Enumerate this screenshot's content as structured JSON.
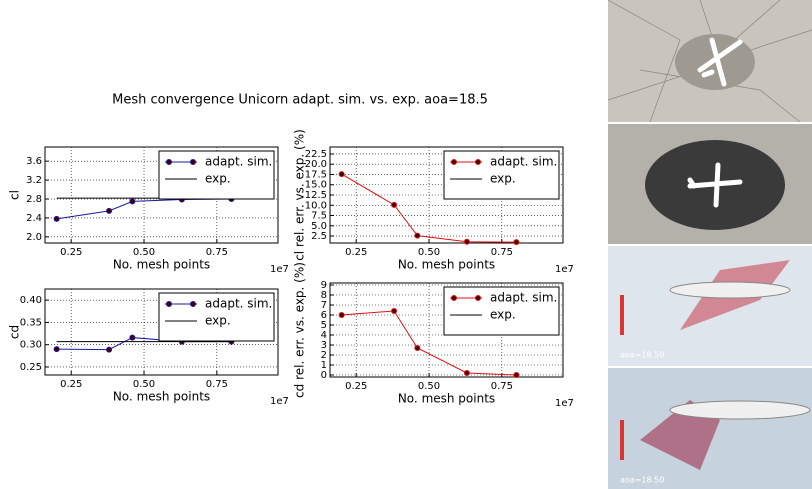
{
  "title": "Mesh convergence Unicorn adapt. sim. vs. exp. aoa=18.5",
  "image_labels": [
    "aoa=18.50",
    "aoa=18.50"
  ],
  "chart_data": [
    {
      "type": "line",
      "x": [
        0.2,
        0.38,
        0.46,
        0.63,
        0.8
      ],
      "xlim": [
        0.16,
        0.96
      ],
      "xticks": [
        0.25,
        {
          "value": 0.5,
          "label": "0.50"
        },
        0.75
      ],
      "x_offset_label": "1e7",
      "xlabel": "No. mesh points",
      "ylabel": "cl",
      "ylim": [
        1.87,
        3.9
      ],
      "yticks": [
        {
          "value": 2.0,
          "label": "2.0"
        },
        2.4,
        2.8,
        3.2,
        3.6
      ],
      "grid": true,
      "legend": "upper right",
      "series": [
        {
          "name": "adapt. sim.",
          "color": "#1a1aa0",
          "markers": true,
          "values": [
            2.38,
            2.55,
            2.75,
            2.79,
            2.8
          ]
        },
        {
          "name": "exp.",
          "color": "#000000",
          "markers": false,
          "values": [
            2.82,
            2.82,
            2.82,
            2.82,
            2.82
          ]
        }
      ]
    },
    {
      "type": "line",
      "x": [
        0.2,
        0.38,
        0.46,
        0.63,
        0.8
      ],
      "xlim": [
        0.16,
        0.96
      ],
      "xticks": [
        0.25,
        {
          "value": 0.5,
          "label": "0.50"
        },
        0.75
      ],
      "x_offset_label": "1e7",
      "xlabel": "No. mesh points",
      "ylabel": "cd",
      "ylim": [
        0.232,
        0.425
      ],
      "yticks": [
        0.25,
        {
          "value": 0.3,
          "label": "0.30"
        },
        0.35,
        {
          "value": 0.4,
          "label": "0.40"
        }
      ],
      "grid": true,
      "legend": "upper right",
      "series": [
        {
          "name": "adapt. sim.",
          "color": "#1a1aa0",
          "markers": true,
          "values": [
            0.29,
            0.289,
            0.316,
            0.307,
            0.307
          ]
        },
        {
          "name": "exp.",
          "color": "#000000",
          "markers": false,
          "values": [
            0.307,
            0.307,
            0.307,
            0.307,
            0.307
          ]
        }
      ]
    },
    {
      "type": "line",
      "x": [
        0.2,
        0.38,
        0.46,
        0.63,
        0.8
      ],
      "xlim": [
        0.16,
        0.96
      ],
      "xticks": [
        0.25,
        {
          "value": 0.5,
          "label": "0.50"
        },
        0.75
      ],
      "x_offset_label": "1e7",
      "xlabel": "No. mesh points",
      "ylabel": "cl rel. err. vs. exp. (%)",
      "ylim": [
        0.8,
        24.2
      ],
      "yticks": [
        2.5,
        {
          "value": 5,
          "label": "5.0"
        },
        7.5,
        {
          "value": 10,
          "label": "10.0"
        },
        12.5,
        {
          "value": 15,
          "label": "15.0"
        },
        17.5,
        {
          "value": 20,
          "label": "20.0"
        },
        22.5
      ],
      "grid": true,
      "legend": "upper right",
      "series": [
        {
          "name": "adapt. sim.",
          "color": "#e01010",
          "markers": true,
          "values": [
            17.6,
            10.1,
            2.6,
            1.1,
            1.0
          ]
        },
        {
          "name": "exp.",
          "color": "#000000",
          "markers": false,
          "values": [
            null,
            null,
            null,
            null,
            null
          ]
        }
      ]
    },
    {
      "type": "line",
      "x": [
        0.2,
        0.38,
        0.46,
        0.63,
        0.8
      ],
      "xlim": [
        0.16,
        0.96
      ],
      "xticks": [
        0.25,
        {
          "value": 0.5,
          "label": "0.50"
        },
        0.75
      ],
      "x_offset_label": "1e7",
      "xlabel": "No. mesh points",
      "ylabel": "cd rel. err. vs. exp. (%)",
      "ylim": [
        -0.2,
        9.2
      ],
      "yticks": [
        0,
        1,
        2,
        3,
        4,
        5,
        6,
        7,
        8,
        9
      ],
      "grid": true,
      "legend": "upper right",
      "series": [
        {
          "name": "adapt. sim.",
          "color": "#e01010",
          "markers": true,
          "values": [
            6.0,
            6.4,
            2.7,
            0.2,
            0.0
          ]
        },
        {
          "name": "exp.",
          "color": "#000000",
          "markers": false,
          "values": [
            null,
            null,
            null,
            null,
            null
          ]
        }
      ]
    }
  ]
}
